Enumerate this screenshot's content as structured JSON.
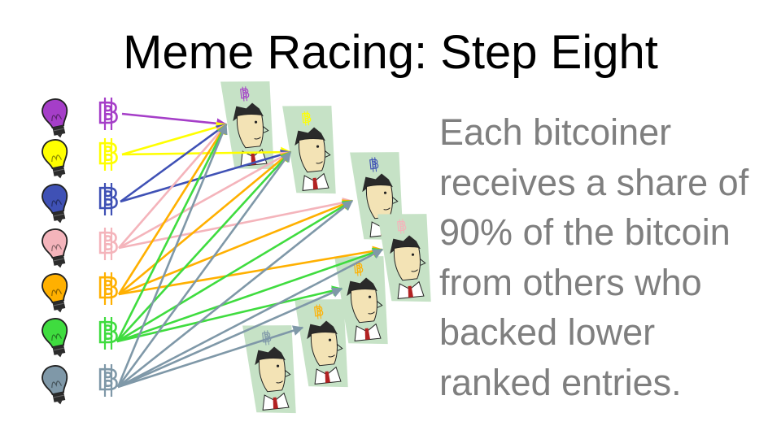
{
  "slide": {
    "title": "Meme Racing: Step Eight",
    "body_lines": [
      "Each bitcoiner",
      "receives a share of",
      "90% of the bitcoin",
      "from others who",
      "backed lower",
      "ranked entries."
    ]
  },
  "colors": {
    "purple": "#a53ec8",
    "yellow": "#ffff00",
    "blue": "#3f51b5",
    "pink": "#f4b4bb",
    "orange": "#ffb000",
    "green": "#3fdc3f",
    "gray": "#7f98a8",
    "card": "#c6e2c6",
    "body_text": "#7f7f7f"
  },
  "backers": [
    {
      "color": "purple",
      "icons": [
        "lightbulb-icon",
        "bitcoin-icon"
      ]
    },
    {
      "color": "yellow",
      "icons": [
        "lightbulb-icon",
        "bitcoin-icon"
      ]
    },
    {
      "color": "blue",
      "icons": [
        "lightbulb-icon",
        "bitcoin-icon"
      ]
    },
    {
      "color": "pink",
      "icons": [
        "lightbulb-icon",
        "bitcoin-icon"
      ]
    },
    {
      "color": "orange",
      "icons": [
        "lightbulb-icon",
        "bitcoin-icon"
      ]
    },
    {
      "color": "green",
      "icons": [
        "lightbulb-icon",
        "bitcoin-icon"
      ]
    },
    {
      "color": "gray",
      "icons": [
        "lightbulb-icon",
        "bitcoin-icon"
      ]
    }
  ],
  "entries": [
    {
      "bitcoin_color": "purple"
    },
    {
      "bitcoin_color": "yellow"
    },
    {
      "bitcoin_color": "blue"
    },
    {
      "bitcoin_color": "pink"
    },
    {
      "bitcoin_color": "orange"
    },
    {
      "bitcoin_color": "orange"
    },
    {
      "bitcoin_color": "gray"
    }
  ],
  "flows": [
    {
      "from": 0,
      "to": 0
    },
    {
      "from": 1,
      "to": 0
    },
    {
      "from": 1,
      "to": 1
    },
    {
      "from": 2,
      "to": 0
    },
    {
      "from": 2,
      "to": 1
    },
    {
      "from": 3,
      "to": 0
    },
    {
      "from": 3,
      "to": 1
    },
    {
      "from": 3,
      "to": 2
    },
    {
      "from": 4,
      "to": 0
    },
    {
      "from": 4,
      "to": 1
    },
    {
      "from": 4,
      "to": 2
    },
    {
      "from": 4,
      "to": 3
    },
    {
      "from": 5,
      "to": 0
    },
    {
      "from": 5,
      "to": 1
    },
    {
      "from": 5,
      "to": 2
    },
    {
      "from": 5,
      "to": 3
    },
    {
      "from": 5,
      "to": 4
    },
    {
      "from": 6,
      "to": 0
    },
    {
      "from": 6,
      "to": 1
    },
    {
      "from": 6,
      "to": 2
    },
    {
      "from": 6,
      "to": 3
    },
    {
      "from": 6,
      "to": 4
    },
    {
      "from": 6,
      "to": 5
    }
  ]
}
